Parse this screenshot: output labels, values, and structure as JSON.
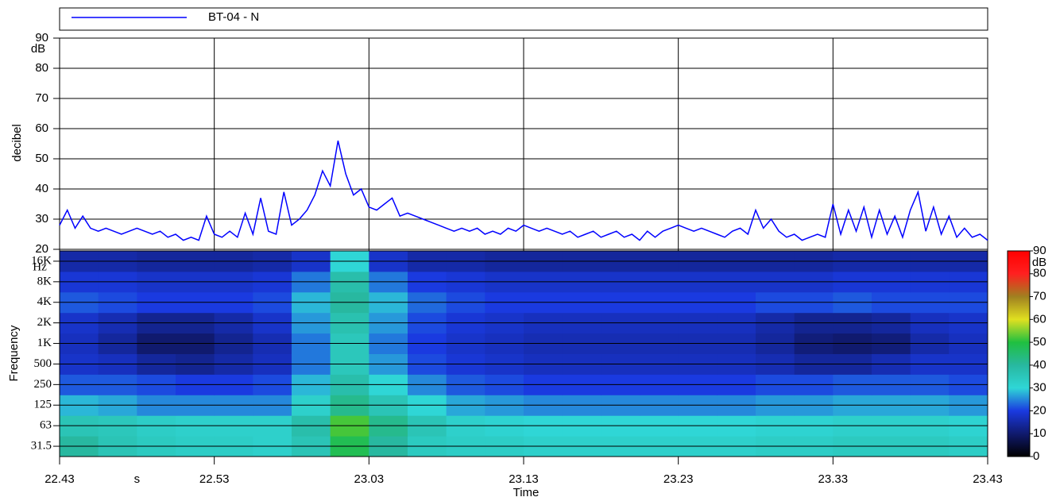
{
  "chart_data": [
    {
      "type": "line",
      "legend": "box-top",
      "ylabel": "decibel",
      "y_unit": "dB",
      "xlabel": "Time",
      "x_unit": "s",
      "ylim": [
        20,
        90
      ],
      "yticks": [
        20,
        30,
        40,
        50,
        60,
        70,
        80,
        90
      ],
      "xlim": [
        1363,
        1423
      ],
      "xticks": [
        {
          "value": 1363,
          "label": "22.43"
        },
        {
          "value": 1373,
          "label": "22.53"
        },
        {
          "value": 1383,
          "label": "23.03"
        },
        {
          "value": 1393,
          "label": "23.13"
        },
        {
          "value": 1403,
          "label": "23.23"
        },
        {
          "value": 1413,
          "label": "23.33"
        },
        {
          "value": 1423,
          "label": "23.43"
        }
      ],
      "grid": true,
      "x": [
        1363,
        1363.5,
        1364,
        1364.5,
        1365,
        1365.5,
        1366,
        1366.5,
        1367,
        1367.5,
        1368,
        1368.5,
        1369,
        1369.5,
        1370,
        1370.5,
        1371,
        1371.5,
        1372,
        1372.5,
        1373,
        1373.5,
        1374,
        1374.5,
        1375,
        1375.5,
        1376,
        1376.5,
        1377,
        1377.5,
        1378,
        1378.5,
        1379,
        1379.5,
        1380,
        1380.5,
        1381,
        1381.5,
        1382,
        1382.5,
        1383,
        1383.5,
        1384,
        1384.5,
        1385,
        1385.5,
        1386,
        1386.5,
        1387,
        1387.5,
        1388,
        1388.5,
        1389,
        1389.5,
        1390,
        1390.5,
        1391,
        1391.5,
        1392,
        1392.5,
        1393,
        1393.5,
        1394,
        1394.5,
        1395,
        1395.5,
        1396,
        1396.5,
        1397,
        1397.5,
        1398,
        1398.5,
        1399,
        1399.5,
        1400,
        1400.5,
        1401,
        1401.5,
        1402,
        1402.5,
        1403,
        1403.5,
        1404,
        1404.5,
        1405,
        1405.5,
        1406,
        1406.5,
        1407,
        1407.5,
        1408,
        1408.5,
        1409,
        1409.5,
        1410,
        1410.5,
        1411,
        1411.5,
        1412,
        1412.5,
        1413,
        1413.5,
        1414,
        1414.5,
        1415,
        1415.5,
        1416,
        1416.5,
        1417,
        1417.5,
        1418,
        1418.5,
        1419,
        1419.5,
        1420,
        1420.5,
        1421,
        1421.5,
        1422,
        1422.5,
        1423
      ],
      "series": [
        {
          "name": "BT-04 - N",
          "color": "#0000ff",
          "values": [
            28,
            33,
            27,
            31,
            27,
            26,
            27,
            26,
            25,
            26,
            27,
            26,
            25,
            26,
            24,
            25,
            23,
            24,
            23,
            31,
            25,
            24,
            26,
            24,
            32,
            25,
            37,
            26,
            25,
            39,
            28,
            30,
            33,
            38,
            46,
            41,
            56,
            45,
            38,
            40,
            34,
            33,
            35,
            37,
            31,
            32,
            31,
            30,
            29,
            28,
            27,
            26,
            27,
            26,
            27,
            25,
            26,
            25,
            27,
            26,
            28,
            27,
            26,
            27,
            26,
            25,
            26,
            24,
            25,
            26,
            24,
            25,
            26,
            24,
            25,
            23,
            26,
            24,
            26,
            27,
            28,
            27,
            26,
            27,
            26,
            25,
            24,
            26,
            27,
            25,
            33,
            27,
            30,
            26,
            24,
            25,
            23,
            24,
            25,
            24,
            35,
            25,
            33,
            26,
            34,
            24,
            33,
            25,
            31,
            24,
            33,
            39,
            26,
            34,
            25,
            31,
            24,
            27,
            24,
            25,
            23
          ]
        }
      ]
    },
    {
      "type": "heatmap",
      "ylabel": "Frequency",
      "y_unit": "Hz",
      "xlim": [
        1363,
        1423
      ],
      "categories": [
        {
          "value": 31.5,
          "label": "31.5"
        },
        {
          "value": 63,
          "label": "63"
        },
        {
          "value": 125,
          "label": "125"
        },
        {
          "value": 250,
          "label": "250"
        },
        {
          "value": 500,
          "label": "500"
        },
        {
          "value": 1000,
          "label": "1K"
        },
        {
          "value": 2000,
          "label": "2K"
        },
        {
          "value": 4000,
          "label": "4K"
        },
        {
          "value": 8000,
          "label": "8K"
        },
        {
          "value": 16000,
          "label": "16K"
        }
      ],
      "zlim": [
        0,
        90
      ],
      "zticks": [
        0,
        10,
        20,
        30,
        40,
        50,
        60,
        70,
        80,
        90
      ],
      "z_unit": "dB",
      "colors": [
        "#000000",
        "#101a6e",
        "#1a3ae0",
        "#2fd6d6",
        "#28b8a0",
        "#20c040",
        "#e0e020",
        "#a08020",
        "#ff2020",
        "#ff0000"
      ],
      "values": [
        [
          40,
          36,
          34,
          33,
          33,
          32,
          36,
          48,
          40,
          34,
          33,
          33,
          32,
          32,
          32,
          32,
          32,
          32,
          33,
          33,
          34,
          34,
          34,
          33
        ],
        [
          36,
          35,
          33,
          32,
          32,
          32,
          38,
          52,
          42,
          36,
          32,
          31,
          30,
          30,
          30,
          30,
          30,
          30,
          31,
          31,
          32,
          32,
          32,
          31
        ],
        [
          28,
          27,
          25,
          25,
          25,
          25,
          32,
          42,
          36,
          30,
          27,
          26,
          25,
          25,
          25,
          25,
          25,
          25,
          26,
          26,
          27,
          27,
          27,
          26
        ],
        [
          22,
          22,
          21,
          20,
          20,
          21,
          28,
          38,
          30,
          25,
          22,
          21,
          20,
          20,
          20,
          20,
          20,
          20,
          21,
          21,
          22,
          22,
          22,
          21
        ],
        [
          18,
          17,
          14,
          13,
          15,
          17,
          24,
          35,
          26,
          21,
          19,
          18,
          17,
          17,
          17,
          17,
          17,
          17,
          16,
          14,
          14,
          16,
          18,
          18
        ],
        [
          17,
          14,
          10,
          10,
          13,
          16,
          24,
          35,
          24,
          20,
          18,
          17,
          16,
          16,
          16,
          16,
          16,
          16,
          14,
          11,
          10,
          11,
          15,
          17
        ],
        [
          18,
          16,
          13,
          13,
          15,
          18,
          26,
          37,
          26,
          21,
          19,
          18,
          17,
          17,
          17,
          17,
          17,
          17,
          15,
          13,
          13,
          14,
          17,
          18
        ],
        [
          22,
          21,
          20,
          20,
          20,
          21,
          28,
          40,
          28,
          23,
          21,
          20,
          20,
          20,
          20,
          20,
          20,
          20,
          21,
          21,
          22,
          21,
          21,
          21
        ],
        [
          19,
          19,
          18,
          18,
          18,
          19,
          24,
          38,
          24,
          20,
          19,
          18,
          18,
          18,
          18,
          18,
          18,
          18,
          18,
          18,
          19,
          19,
          19,
          19
        ],
        [
          15,
          15,
          14,
          14,
          14,
          15,
          18,
          30,
          18,
          15,
          15,
          14,
          14,
          14,
          14,
          14,
          14,
          14,
          14,
          14,
          15,
          15,
          15,
          15
        ]
      ]
    }
  ]
}
